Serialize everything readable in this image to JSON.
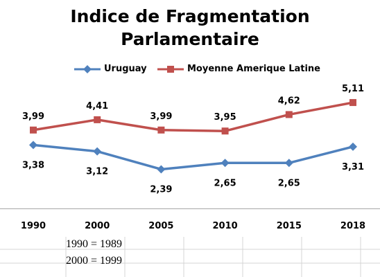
{
  "chart_data": {
    "type": "line",
    "title_line1": "Indice de Fragmentation",
    "title_line2": "Parlamentaire",
    "categories": [
      "1990",
      "2000",
      "2005",
      "2010",
      "2015",
      "2018"
    ],
    "series": [
      {
        "name": "Uruguay",
        "values": [
          3.38,
          3.12,
          2.39,
          2.65,
          2.65,
          3.31
        ],
        "labels": [
          "3,38",
          "3,12",
          "2,39",
          "2,65",
          "2,65",
          "3,31"
        ],
        "color": "#4F81BD",
        "marker": "diamond",
        "label_position": "below"
      },
      {
        "name": "Moyenne Amerique Latine",
        "values": [
          3.99,
          4.41,
          3.99,
          3.95,
          4.62,
          5.11
        ],
        "labels": [
          "3,99",
          "4,41",
          "3,99",
          "3,95",
          "4,62",
          "5,11"
        ],
        "color": "#C0504D",
        "marker": "square",
        "label_position": "above"
      }
    ],
    "legend_position": "top",
    "grid": false
  },
  "notes": [
    "1990 = 1989",
    "2000 = 1999"
  ]
}
